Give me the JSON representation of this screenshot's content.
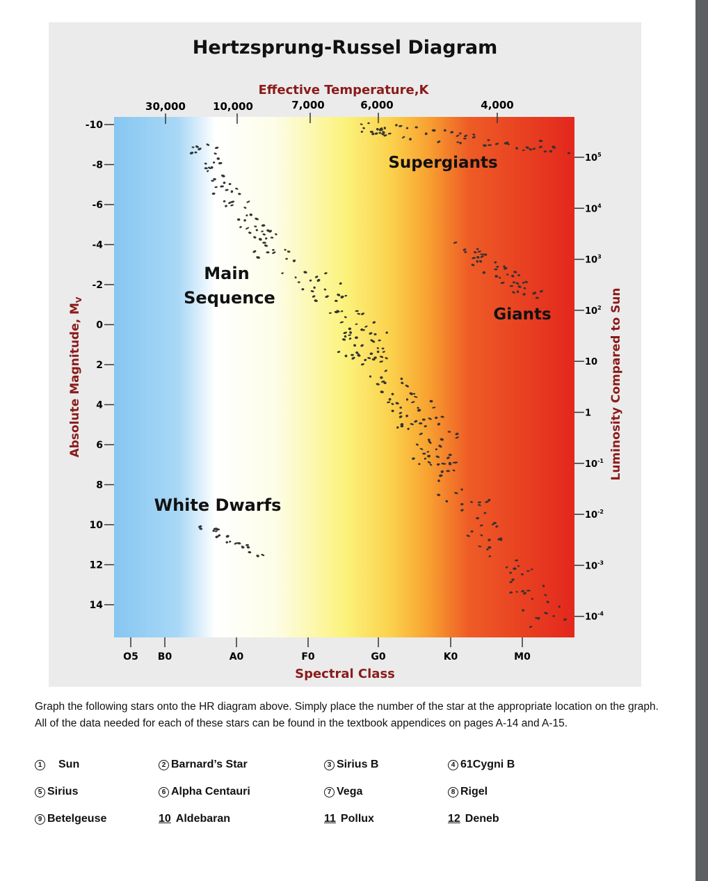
{
  "diagram": {
    "title": "Hertzsprung-Russel Diagram",
    "temp_axis_title": "Effective Temperature,K",
    "temp_ticks": [
      "30,000",
      "10,000",
      "7,000",
      "6,000",
      "4,000"
    ],
    "mag_axis_title": "Absolute Magnitude, M",
    "mag_axis_subscript": "V",
    "mag_ticks": [
      "-10",
      "-8",
      "-6",
      "-4",
      "-2",
      "0",
      "2",
      "4",
      "6",
      "8",
      "10",
      "12",
      "14"
    ],
    "lum_axis_title": "Luminosity Compared to Sun",
    "lum_ticks": [
      "10^5",
      "10^4",
      "10^3",
      "10^2",
      "10",
      "1",
      "10^-1",
      "10^-2",
      "10^-3",
      "10^-4"
    ],
    "spectral_axis_title": "Spectral Class",
    "spectral_ticks": [
      "O5",
      "B0",
      "A0",
      "F0",
      "G0",
      "K0",
      "M0"
    ],
    "region_labels": {
      "supergiants": "Supergiants",
      "main_sequence_line1": "Main",
      "main_sequence_line2": "Sequence",
      "giants": "Giants",
      "white_dwarfs": "White Dwarfs"
    },
    "colors": {
      "title_red": "#8b1a1a",
      "blue": "#89c9f2",
      "white": "#ffffff",
      "yellow": "#fdf17a",
      "orange": "#f9a531",
      "red": "#e42b1e"
    }
  },
  "instructions": "Graph the following stars onto the HR diagram above.  Simply place the number of the star at the appropriate location on the graph.  All of the data needed for each of these stars can be found in the textbook appendices on pages A-14 and A-15.",
  "stars": [
    {
      "num": "1",
      "name": "Sun",
      "circled": true
    },
    {
      "num": "2",
      "name": "Barnard’s Star",
      "circled": true
    },
    {
      "num": "3",
      "name": "Sirius B",
      "circled": true
    },
    {
      "num": "4",
      "name": "61Cygni B",
      "circled": true
    },
    {
      "num": "5",
      "name": "Sirius",
      "circled": true
    },
    {
      "num": "6",
      "name": "Alpha Centauri",
      "circled": true
    },
    {
      "num": "7",
      "name": "Vega",
      "circled": true
    },
    {
      "num": "8",
      "name": "Rigel",
      "circled": true
    },
    {
      "num": "9",
      "name": "Betelgeuse",
      "circled": true
    },
    {
      "num": "10",
      "name": "Aldebaran",
      "circled": false
    },
    {
      "num": "11",
      "name": "Pollux",
      "circled": false
    },
    {
      "num": "12",
      "name": "Deneb",
      "circled": false
    }
  ]
}
